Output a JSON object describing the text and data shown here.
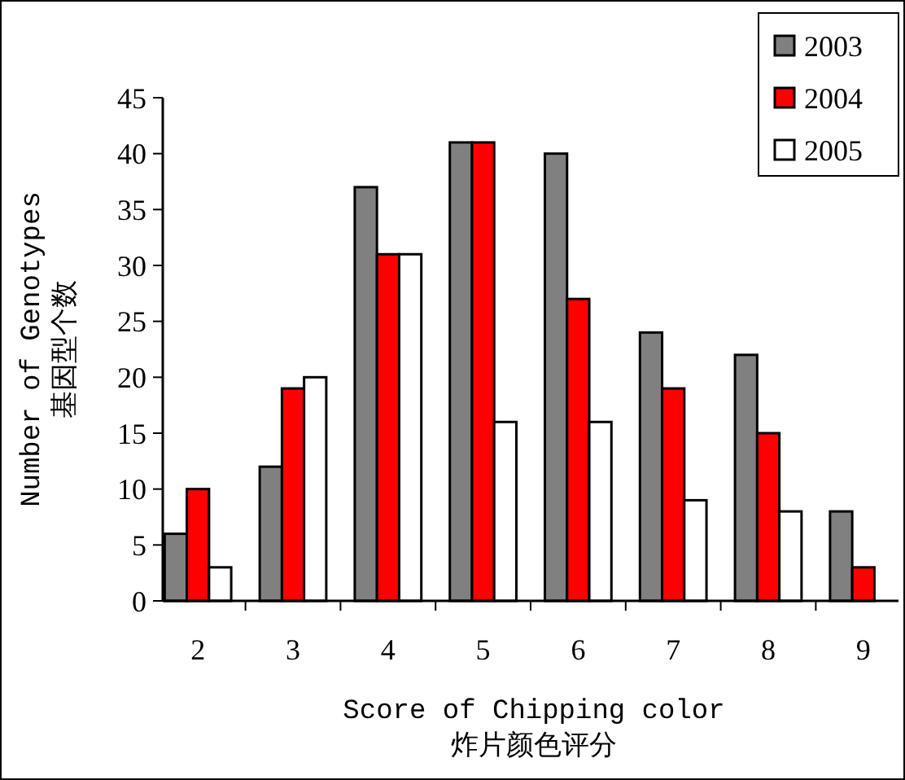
{
  "chart_data": {
    "type": "bar",
    "xlabel": "Score of Chipping color\n炸片颜色评分",
    "ylabel": "Number of Genotypes\n基因型个数",
    "categories": [
      "2",
      "3",
      "4",
      "5",
      "6",
      "7",
      "8",
      "9"
    ],
    "series": [
      {
        "name": "2003",
        "color": "#808080",
        "values": [
          6,
          12,
          37,
          41,
          40,
          24,
          22,
          8
        ]
      },
      {
        "name": "2004",
        "color": "#ff0000",
        "values": [
          10,
          19,
          31,
          41,
          27,
          19,
          15,
          3
        ]
      },
      {
        "name": "2005",
        "color": "#ffffff",
        "values": [
          3,
          20,
          31,
          16,
          16,
          9,
          8,
          null
        ]
      }
    ],
    "ylim": [
      0,
      45
    ],
    "yticks": [
      0,
      5,
      10,
      15,
      20,
      25,
      30,
      35,
      40,
      45
    ],
    "grid": false,
    "legend": "top right"
  }
}
